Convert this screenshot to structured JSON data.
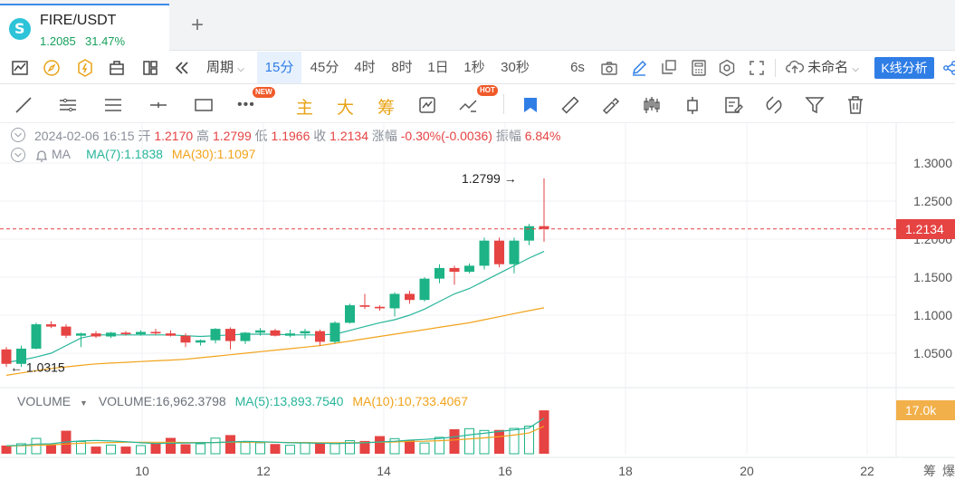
{
  "tab": {
    "symbol": "FIRE/USDT",
    "price": "1.2085",
    "change": "31.47%",
    "add_icon": "plus-icon"
  },
  "toolbar": {
    "period_label": "周期",
    "timeframes": [
      "15分",
      "45分",
      "4时",
      "8时",
      "1日",
      "1秒",
      "30秒"
    ],
    "active_timeframe": "15分",
    "seconds_label": "6s",
    "layout_name": "未命名",
    "analysis_button": "K线分析"
  },
  "drawbar": {
    "new_badge": "NEW",
    "hot_badge": "HOT",
    "main_label": "主",
    "big_label": "大",
    "chip_label": "筹"
  },
  "ohlc": {
    "datetime": "2024-02-06 16:15",
    "open_label": "开",
    "open": "1.2170",
    "high_label": "高",
    "high": "1.2799",
    "low_label": "低",
    "low": "1.1966",
    "close_label": "收",
    "close": "1.2134",
    "change_label": "涨幅",
    "change": "-0.30%(-0.0036)",
    "amplitude_label": "振幅",
    "amplitude": "6.84%"
  },
  "ma": {
    "label": "MA",
    "ma7": "MA(7):1.1838",
    "ma30": "MA(30):1.1097"
  },
  "volume": {
    "label": "VOLUME",
    "value": "VOLUME:16,962.3798",
    "ma5": "MA(5):13,893.7540",
    "ma10": "MA(10):10,733.4067",
    "axis_tag": "17.0k"
  },
  "price_axis": {
    "ticks": [
      "1.3000",
      "1.2500",
      "1.2000",
      "1.1500",
      "1.1000",
      "1.0500"
    ],
    "current_tag": "1.2134",
    "high_marker": "1.2799 →",
    "low_marker": "← 1.0315"
  },
  "time_axis": {
    "ticks": [
      "10",
      "12",
      "14",
      "16",
      "18",
      "20",
      "22"
    ],
    "right_labels": [
      "筹",
      "爆"
    ]
  },
  "colors": {
    "up": "#1db386",
    "down": "#e64343",
    "ma7": "#27b59a",
    "ma30": "#f2a31b",
    "accent": "#2f7ee6"
  },
  "chart_data": {
    "type": "candlestick",
    "interval": "15分",
    "candles": [
      {
        "o": 1.055,
        "h": 1.058,
        "l": 1.032,
        "c": 1.036
      },
      {
        "o": 1.036,
        "h": 1.06,
        "l": 1.032,
        "c": 1.056
      },
      {
        "o": 1.056,
        "h": 1.09,
        "l": 1.055,
        "c": 1.088
      },
      {
        "o": 1.088,
        "h": 1.092,
        "l": 1.083,
        "c": 1.085
      },
      {
        "o": 1.085,
        "h": 1.088,
        "l": 1.07,
        "c": 1.073
      },
      {
        "o": 1.073,
        "h": 1.077,
        "l": 1.058,
        "c": 1.076
      },
      {
        "o": 1.076,
        "h": 1.079,
        "l": 1.07,
        "c": 1.072
      },
      {
        "o": 1.072,
        "h": 1.078,
        "l": 1.07,
        "c": 1.077
      },
      {
        "o": 1.077,
        "h": 1.079,
        "l": 1.073,
        "c": 1.075
      },
      {
        "o": 1.075,
        "h": 1.08,
        "l": 1.073,
        "c": 1.078
      },
      {
        "o": 1.078,
        "h": 1.082,
        "l": 1.074,
        "c": 1.076
      },
      {
        "o": 1.076,
        "h": 1.08,
        "l": 1.072,
        "c": 1.073
      },
      {
        "o": 1.073,
        "h": 1.076,
        "l": 1.058,
        "c": 1.064
      },
      {
        "o": 1.064,
        "h": 1.068,
        "l": 1.06,
        "c": 1.067
      },
      {
        "o": 1.067,
        "h": 1.083,
        "l": 1.063,
        "c": 1.082
      },
      {
        "o": 1.082,
        "h": 1.084,
        "l": 1.055,
        "c": 1.066
      },
      {
        "o": 1.066,
        "h": 1.078,
        "l": 1.062,
        "c": 1.077
      },
      {
        "o": 1.077,
        "h": 1.083,
        "l": 1.073,
        "c": 1.08
      },
      {
        "o": 1.08,
        "h": 1.082,
        "l": 1.072,
        "c": 1.073
      },
      {
        "o": 1.073,
        "h": 1.081,
        "l": 1.071,
        "c": 1.076
      },
      {
        "o": 1.076,
        "h": 1.082,
        "l": 1.069,
        "c": 1.079
      },
      {
        "o": 1.079,
        "h": 1.081,
        "l": 1.06,
        "c": 1.065
      },
      {
        "o": 1.065,
        "h": 1.092,
        "l": 1.063,
        "c": 1.09
      },
      {
        "o": 1.09,
        "h": 1.115,
        "l": 1.089,
        "c": 1.113
      },
      {
        "o": 1.113,
        "h": 1.128,
        "l": 1.108,
        "c": 1.111
      },
      {
        "o": 1.111,
        "h": 1.113,
        "l": 1.106,
        "c": 1.109
      },
      {
        "o": 1.109,
        "h": 1.13,
        "l": 1.098,
        "c": 1.128
      },
      {
        "o": 1.128,
        "h": 1.132,
        "l": 1.115,
        "c": 1.12
      },
      {
        "o": 1.12,
        "h": 1.15,
        "l": 1.118,
        "c": 1.148
      },
      {
        "o": 1.148,
        "h": 1.167,
        "l": 1.142,
        "c": 1.162
      },
      {
        "o": 1.162,
        "h": 1.165,
        "l": 1.14,
        "c": 1.157
      },
      {
        "o": 1.157,
        "h": 1.168,
        "l": 1.155,
        "c": 1.165
      },
      {
        "o": 1.165,
        "h": 1.202,
        "l": 1.16,
        "c": 1.198
      },
      {
        "o": 1.198,
        "h": 1.202,
        "l": 1.163,
        "c": 1.167
      },
      {
        "o": 1.167,
        "h": 1.202,
        "l": 1.155,
        "c": 1.198
      },
      {
        "o": 1.198,
        "h": 1.22,
        "l": 1.192,
        "c": 1.217
      },
      {
        "o": 1.217,
        "h": 1.2799,
        "l": 1.1966,
        "c": 1.2134
      }
    ],
    "ma7": [
      1.038,
      1.041,
      1.045,
      1.05,
      1.06,
      1.07,
      1.074,
      1.074,
      1.074,
      1.074,
      1.074,
      1.074,
      1.073,
      1.072,
      1.073,
      1.074,
      1.075,
      1.075,
      1.075,
      1.074,
      1.074,
      1.074,
      1.075,
      1.08,
      1.085,
      1.09,
      1.094,
      1.1,
      1.108,
      1.118,
      1.128,
      1.135,
      1.145,
      1.155,
      1.165,
      1.175,
      1.1838
    ],
    "ma30": [
      1.021,
      1.024,
      1.027,
      1.03,
      1.032,
      1.034,
      1.036,
      1.037,
      1.038,
      1.039,
      1.04,
      1.041,
      1.042,
      1.044,
      1.046,
      1.048,
      1.05,
      1.052,
      1.054,
      1.056,
      1.058,
      1.06,
      1.063,
      1.066,
      1.069,
      1.072,
      1.075,
      1.078,
      1.081,
      1.084,
      1.087,
      1.09,
      1.094,
      1.098,
      1.102,
      1.106,
      1.1097
    ],
    "volume": [
      3200,
      3900,
      6000,
      3500,
      9000,
      4800,
      2800,
      3400,
      2800,
      3200,
      4100,
      6200,
      3700,
      3900,
      6100,
      7300,
      4400,
      4300,
      3800,
      3300,
      4400,
      4400,
      3900,
      5100,
      5000,
      6900,
      5900,
      5300,
      4200,
      6400,
      9600,
      9800,
      9100,
      9300,
      9900,
      10800,
      16962.3798
    ],
    "volume_ma5": [
      3100,
      3300,
      3800,
      3900,
      4600,
      5000,
      5200,
      5000,
      4700,
      4300,
      4000,
      4100,
      4200,
      4300,
      4400,
      4600,
      4800,
      4700,
      4500,
      4300,
      4200,
      4100,
      4000,
      4100,
      4300,
      4600,
      4900,
      5300,
      5600,
      6000,
      6600,
      7400,
      8000,
      8700,
      9300,
      10100,
      13893.754
    ],
    "volume_ma10": [
      3000,
      3100,
      3300,
      3500,
      3800,
      4100,
      4300,
      4400,
      4500,
      4500,
      4500,
      4500,
      4400,
      4400,
      4400,
      4500,
      4500,
      4500,
      4500,
      4400,
      4400,
      4300,
      4300,
      4300,
      4400,
      4500,
      4600,
      4800,
      4900,
      5100,
      5400,
      5800,
      6200,
      6700,
      7300,
      8100,
      10733.4067
    ],
    "y_range": [
      1.02,
      1.32
    ],
    "grid": true
  }
}
